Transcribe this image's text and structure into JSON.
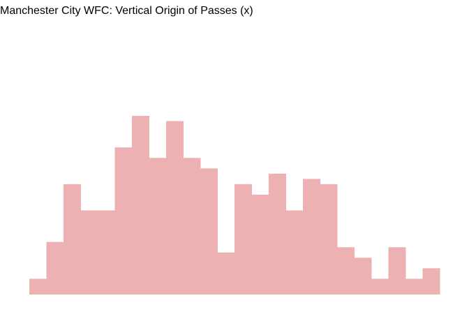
{
  "chart_data": {
    "type": "bar",
    "title": "Manchester City WFC: Vertical Origin of Passes (x)",
    "xlabel": "",
    "ylabel": "",
    "grid": false,
    "bar_color": "#EEB1B3",
    "ylim": [
      0,
      17
    ],
    "values": [
      1.5,
      5,
      10.5,
      8,
      8,
      14,
      17,
      13,
      16.5,
      13,
      12,
      4,
      10.5,
      9.5,
      11.5,
      8,
      11,
      10.5,
      4.5,
      3.5,
      1.5,
      4.5,
      1.5,
      2.5
    ]
  }
}
